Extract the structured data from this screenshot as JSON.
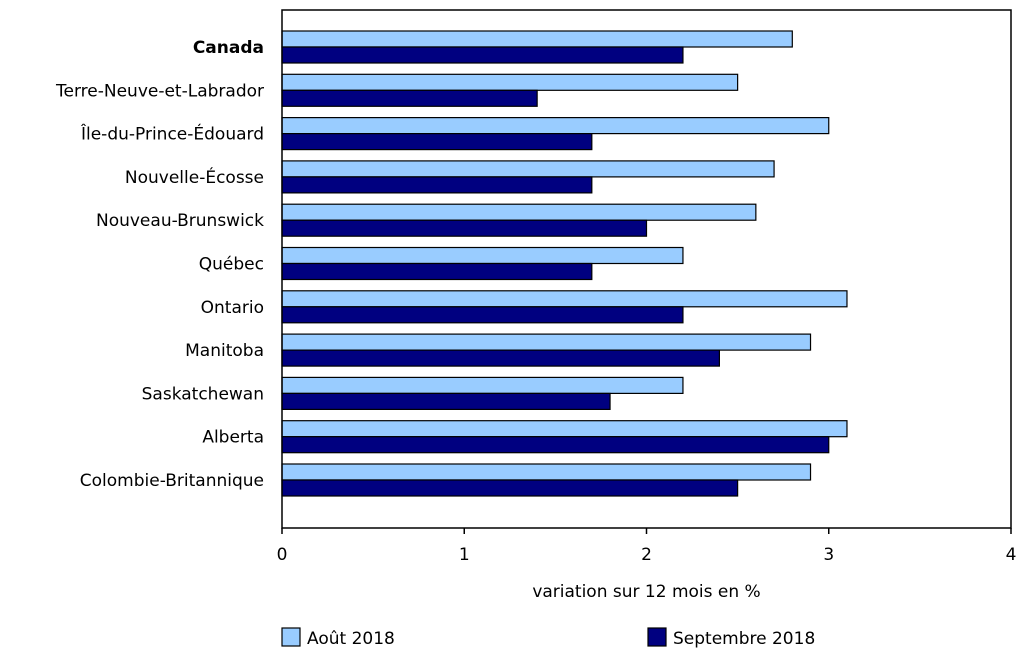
{
  "chart_data": {
    "type": "bar",
    "orientation": "horizontal",
    "categories": [
      "Canada",
      "Terre-Neuve-et-Labrador",
      "Île-du-Prince-Édouard",
      "Nouvelle-Écosse",
      "Nouveau-Brunswick",
      "Québec",
      "Ontario",
      "Manitoba",
      "Saskatchewan",
      "Alberta",
      "Colombie-Britannique"
    ],
    "bold_categories": [
      "Canada"
    ],
    "series": [
      {
        "name": "Août 2018",
        "color": "#99ccff",
        "values": [
          2.8,
          2.5,
          3.0,
          2.7,
          2.6,
          2.2,
          3.1,
          2.9,
          2.2,
          3.1,
          2.9
        ]
      },
      {
        "name": "Septembre 2018",
        "color": "#000080",
        "values": [
          2.2,
          1.4,
          1.7,
          1.7,
          2.0,
          1.7,
          2.2,
          2.4,
          1.8,
          3.0,
          2.5
        ]
      }
    ],
    "xlabel": "variation sur 12 mois en %",
    "ylabel": "",
    "xlim": [
      0,
      4
    ],
    "xticks": [
      "0",
      "1",
      "2",
      "3",
      "4"
    ],
    "grid": false,
    "legend_position": "bottom"
  }
}
